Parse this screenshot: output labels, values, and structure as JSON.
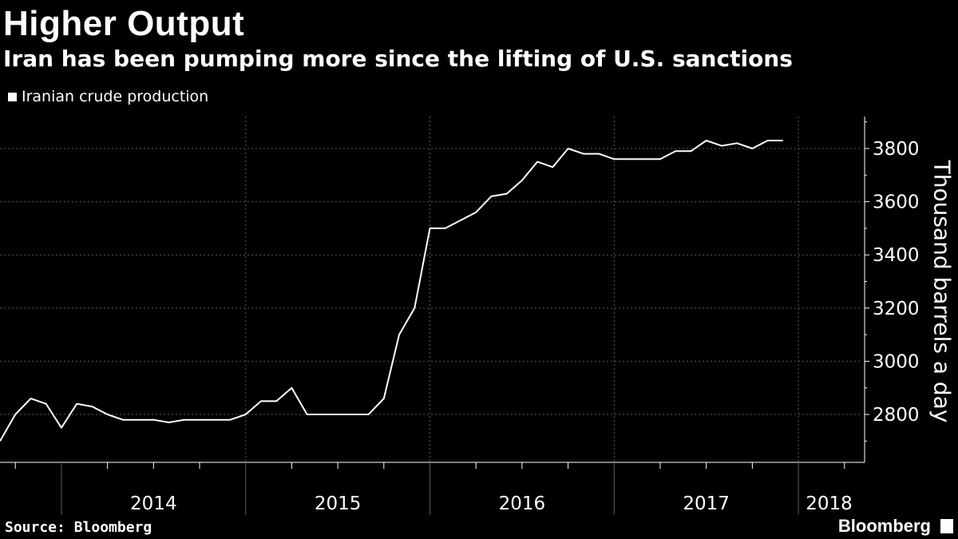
{
  "header": {
    "title": "Higher Output",
    "subtitle": "Iran has been pumping more since the lifting of U.S. sanctions"
  },
  "footer": {
    "source": "Source: Bloomberg",
    "brand": "Bloomberg"
  },
  "colors": {
    "background": "#000000",
    "line": "#ffffff",
    "grid": "#5a5a5a"
  },
  "chart_data": {
    "type": "line",
    "title": "Higher Output",
    "subtitle": "Iran has been pumping more since the lifting of U.S. sanctions",
    "ylabel": "Thousand barrels a day",
    "xlabel": "",
    "y_axis_side": "right",
    "ylim": [
      2620,
      3920
    ],
    "yticks": [
      2800,
      3000,
      3200,
      3400,
      3600,
      3800
    ],
    "year_labels": [
      "2014",
      "2015",
      "2016",
      "2017",
      "2018"
    ],
    "grid": "dotted",
    "legend_position": "top-left",
    "series": [
      {
        "name": "Iranian crude production",
        "points": [
          [
            "2013-09",
            2700
          ],
          [
            "2013-10",
            2800
          ],
          [
            "2013-11",
            2860
          ],
          [
            "2013-12",
            2840
          ],
          [
            "2014-01",
            2750
          ],
          [
            "2014-02",
            2840
          ],
          [
            "2014-03",
            2830
          ],
          [
            "2014-04",
            2800
          ],
          [
            "2014-05",
            2780
          ],
          [
            "2014-06",
            2780
          ],
          [
            "2014-07",
            2780
          ],
          [
            "2014-08",
            2770
          ],
          [
            "2014-09",
            2780
          ],
          [
            "2014-10",
            2780
          ],
          [
            "2014-11",
            2780
          ],
          [
            "2014-12",
            2780
          ],
          [
            "2015-01",
            2800
          ],
          [
            "2015-02",
            2850
          ],
          [
            "2015-03",
            2850
          ],
          [
            "2015-04",
            2900
          ],
          [
            "2015-05",
            2800
          ],
          [
            "2015-06",
            2800
          ],
          [
            "2015-07",
            2800
          ],
          [
            "2015-08",
            2800
          ],
          [
            "2015-09",
            2800
          ],
          [
            "2015-10",
            2860
          ],
          [
            "2015-11",
            3100
          ],
          [
            "2015-12",
            3200
          ],
          [
            "2016-01",
            3500
          ],
          [
            "2016-02",
            3500
          ],
          [
            "2016-03",
            3530
          ],
          [
            "2016-04",
            3560
          ],
          [
            "2016-05",
            3620
          ],
          [
            "2016-06",
            3630
          ],
          [
            "2016-07",
            3680
          ],
          [
            "2016-08",
            3750
          ],
          [
            "2016-09",
            3730
          ],
          [
            "2016-10",
            3800
          ],
          [
            "2016-11",
            3780
          ],
          [
            "2016-12",
            3780
          ],
          [
            "2017-01",
            3760
          ],
          [
            "2017-02",
            3760
          ],
          [
            "2017-03",
            3760
          ],
          [
            "2017-04",
            3760
          ],
          [
            "2017-05",
            3790
          ],
          [
            "2017-06",
            3790
          ],
          [
            "2017-07",
            3830
          ],
          [
            "2017-08",
            3810
          ],
          [
            "2017-09",
            3820
          ],
          [
            "2017-10",
            3800
          ],
          [
            "2017-11",
            3830
          ],
          [
            "2017-12",
            3830
          ]
        ]
      }
    ]
  }
}
